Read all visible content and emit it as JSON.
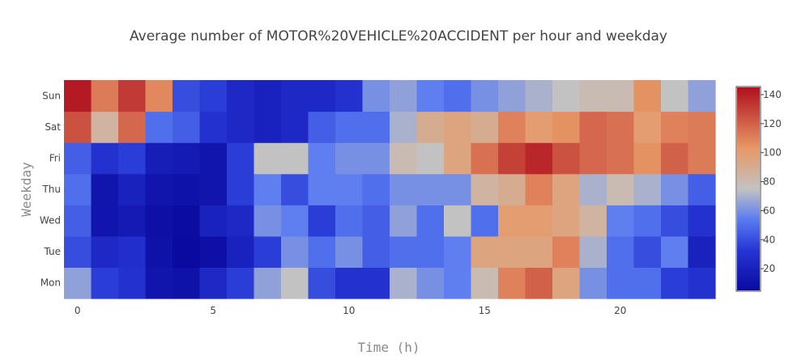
{
  "chart_data": {
    "type": "heatmap",
    "title": "Average number of MOTOR%20VEHICLE%20ACCIDENT per hour and weekday",
    "xlabel": "Time (h)",
    "ylabel": "Weekday",
    "x": [
      0,
      1,
      2,
      3,
      4,
      5,
      6,
      7,
      8,
      9,
      10,
      11,
      12,
      13,
      14,
      15,
      16,
      17,
      18,
      19,
      20,
      21,
      22,
      23
    ],
    "x_ticks": [
      0,
      5,
      10,
      15,
      20
    ],
    "y": [
      "Mon",
      "Tue",
      "Wed",
      "Thu",
      "Fri",
      "Sat",
      "Sun"
    ],
    "z": [
      [
        65,
        35,
        30,
        12,
        10,
        25,
        35,
        65,
        75,
        40,
        30,
        30,
        70,
        60,
        55,
        80,
        110,
        120,
        95,
        60,
        50,
        50,
        35,
        30
      ],
      [
        40,
        25,
        28,
        10,
        5,
        8,
        20,
        35,
        60,
        50,
        60,
        45,
        50,
        50,
        55,
        95,
        95,
        95,
        110,
        70,
        50,
        40,
        55,
        20
      ],
      [
        45,
        12,
        15,
        8,
        6,
        20,
        25,
        60,
        55,
        35,
        50,
        45,
        65,
        50,
        75,
        50,
        100,
        100,
        95,
        85,
        55,
        50,
        40,
        30
      ],
      [
        50,
        12,
        20,
        12,
        10,
        12,
        35,
        55,
        40,
        55,
        55,
        50,
        60,
        60,
        60,
        85,
        90,
        110,
        95,
        70,
        80,
        70,
        60,
        45
      ],
      [
        45,
        30,
        35,
        18,
        15,
        12,
        35,
        75,
        75,
        55,
        60,
        60,
        80,
        75,
        95,
        115,
        130,
        138,
        125,
        118,
        115,
        105,
        120,
        112
      ],
      [
        125,
        85,
        118,
        50,
        45,
        30,
        25,
        20,
        25,
        45,
        50,
        50,
        70,
        90,
        95,
        90,
        110,
        100,
        105,
        118,
        115,
        100,
        110,
        112
      ],
      [
        142,
        112,
        132,
        108,
        40,
        35,
        25,
        20,
        25,
        25,
        30,
        60,
        65,
        55,
        50,
        60,
        65,
        70,
        75,
        80,
        80,
        105,
        75,
        65
      ]
    ],
    "colorbar": {
      "min": 5,
      "max": 145,
      "ticks": [
        20,
        40,
        60,
        80,
        100,
        120,
        140
      ]
    },
    "colorscale": [
      [
        0,
        "#0a0aa0"
      ],
      [
        0.2,
        "#2636d4"
      ],
      [
        0.35,
        "#5a7cf2"
      ],
      [
        0.5,
        "#c2c2c2"
      ],
      [
        0.7,
        "#e89866"
      ],
      [
        1,
        "#b0101f"
      ]
    ]
  }
}
